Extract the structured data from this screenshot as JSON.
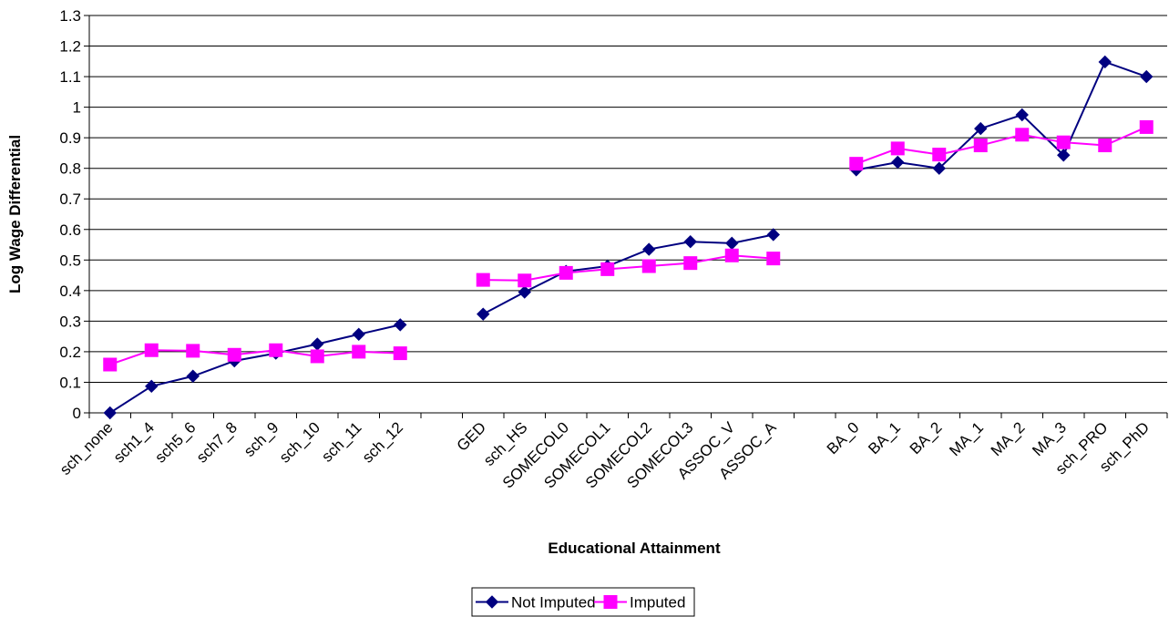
{
  "chart_data": {
    "type": "line",
    "title": "",
    "xlabel": "Educational Attainment",
    "ylabel": "Log Wage Differential",
    "ylim": [
      0,
      1.3
    ],
    "yticks": [
      "0",
      "0.1",
      "0.2",
      "0.3",
      "0.4",
      "0.5",
      "0.6",
      "0.7",
      "0.8",
      "0.9",
      "1",
      "1.1",
      "1.2",
      "1.3"
    ],
    "grid": "horizontal",
    "legend_position": "bottom-center",
    "categories": [
      "sch_none",
      "sch1_4",
      "sch5_6",
      "sch7_8",
      "sch_9",
      "sch_10",
      "sch_11",
      "sch_12",
      "",
      "GED",
      "sch_HS",
      "SOMECOL0",
      "SOMECOL1",
      "SOMECOL2",
      "SOMECOL3",
      "ASSOC_V",
      "ASSOC_A",
      "",
      "BA_0",
      "BA_1",
      "BA_2",
      "MA_1",
      "MA_2",
      "MA_3",
      "sch_PRO",
      "sch_PhD"
    ],
    "series": [
      {
        "name": "Not Imputed",
        "color": "#000080",
        "marker": "diamond",
        "values": [
          0.0,
          0.087,
          0.12,
          0.17,
          0.195,
          0.225,
          0.257,
          0.288,
          null,
          0.323,
          0.395,
          0.463,
          0.48,
          0.535,
          0.56,
          0.555,
          0.583,
          null,
          0.795,
          0.82,
          0.8,
          0.93,
          0.975,
          0.843,
          1.148,
          1.1
        ]
      },
      {
        "name": "Imputed",
        "color": "#FF00FF",
        "marker": "square",
        "values": [
          0.158,
          0.205,
          0.203,
          0.19,
          0.205,
          0.185,
          0.2,
          0.195,
          null,
          0.435,
          0.433,
          0.458,
          0.47,
          0.48,
          0.49,
          0.515,
          0.505,
          null,
          0.815,
          0.865,
          0.845,
          0.875,
          0.91,
          0.885,
          0.875,
          0.935
        ]
      }
    ]
  }
}
